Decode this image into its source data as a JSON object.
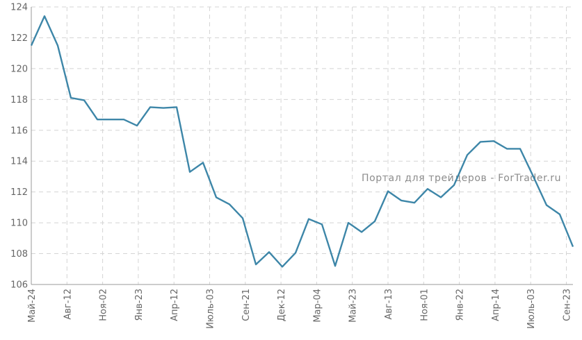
{
  "chart_data": {
    "type": "line",
    "watermark": "Портал для трейдеров - ForTrader.ru",
    "series_color": "#3d86a8",
    "grid_color": "#d4d4d4",
    "ylim": [
      106,
      124
    ],
    "yticks": [
      106,
      108,
      110,
      112,
      114,
      116,
      118,
      120,
      122,
      124
    ],
    "ytick_labels": [
      "106",
      "108",
      "110",
      "112",
      "114",
      "116",
      "118",
      "120",
      "122",
      "124"
    ],
    "xtick_labels": [
      "Май-24",
      "Авг-12",
      "Ноя-02",
      "Янв-23",
      "Апр-12",
      "Июль-03",
      "Сен-21",
      "Дек-12",
      "Мар-04",
      "Май-23",
      "Авг-13",
      "Ноя-01",
      "Янв-22",
      "Апр-14",
      "Июль-03",
      "Сен-23"
    ],
    "grid": true,
    "values": [
      121.5,
      123.4,
      121.5,
      118.1,
      117.95,
      116.7,
      116.7,
      116.7,
      116.3,
      117.5,
      117.45,
      117.5,
      113.3,
      113.9,
      111.65,
      111.2,
      110.3,
      107.3,
      108.1,
      107.15,
      108.05,
      110.25,
      109.9,
      107.2,
      110.0,
      109.4,
      110.1,
      112.05,
      111.45,
      111.3,
      112.2,
      111.65,
      112.45,
      114.4,
      115.25,
      115.3,
      114.8,
      114.8,
      113.0,
      111.15,
      110.55,
      108.45
    ]
  }
}
